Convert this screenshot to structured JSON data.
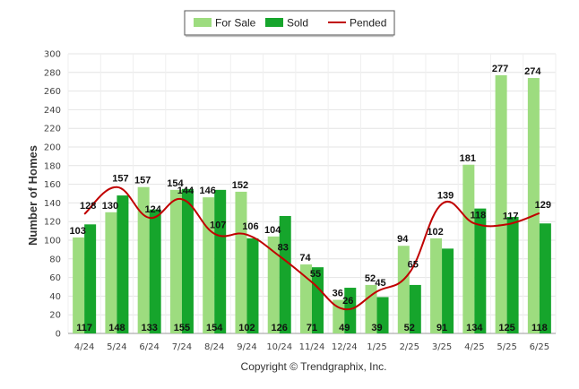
{
  "chart_data": {
    "type": "bar",
    "categories": [
      "4/24",
      "5/24",
      "6/24",
      "7/24",
      "8/24",
      "9/24",
      "10/24",
      "11/24",
      "12/24",
      "1/25",
      "2/25",
      "3/25",
      "4/25",
      "5/25",
      "6/25"
    ],
    "series": [
      {
        "name": "For Sale",
        "kind": "bar",
        "color": "#9ddc7f",
        "values": [
          103,
          130,
          157,
          154,
          146,
          152,
          104,
          74,
          36,
          52,
          94,
          102,
          181,
          277,
          274
        ]
      },
      {
        "name": "Sold",
        "kind": "bar",
        "color": "#16a52c",
        "values": [
          117,
          148,
          133,
          155,
          154,
          102,
          126,
          71,
          49,
          39,
          52,
          91,
          134,
          125,
          118
        ]
      },
      {
        "name": "Pended",
        "kind": "line",
        "color": "#c00000",
        "values": [
          128,
          157,
          124,
          144,
          107,
          106,
          83,
          55,
          26,
          45,
          65,
          139,
          118,
          117,
          129
        ]
      }
    ],
    "xlabel": "",
    "ylabel": "Number of Homes",
    "ylim": [
      0,
      300
    ],
    "yticks": [
      0,
      20,
      40,
      60,
      80,
      100,
      120,
      140,
      160,
      180,
      200,
      220,
      240,
      260,
      280,
      300
    ],
    "grid": true,
    "legend": "top-center"
  },
  "footer": {
    "copyright": "Copyright © Trendgraphix, Inc."
  }
}
